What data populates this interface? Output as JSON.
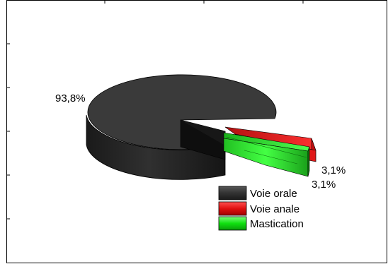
{
  "chart_data": {
    "type": "pie",
    "three_d": true,
    "exploded_slices": [
      "Voie anale",
      "Mastication"
    ],
    "categories": [
      "Voie orale",
      "Voie anale",
      "Mastication"
    ],
    "values": [
      93.8,
      3.1,
      3.1
    ],
    "value_labels": [
      "93,8%",
      "3,1%",
      "3,1%"
    ],
    "colors": [
      "#333333",
      "#e01010",
      "#10e010"
    ],
    "legend": {
      "placement": "bottom-right",
      "entries": [
        "Voie orale",
        "Voie anale",
        "Mastication"
      ]
    },
    "title": "",
    "grid": false
  }
}
